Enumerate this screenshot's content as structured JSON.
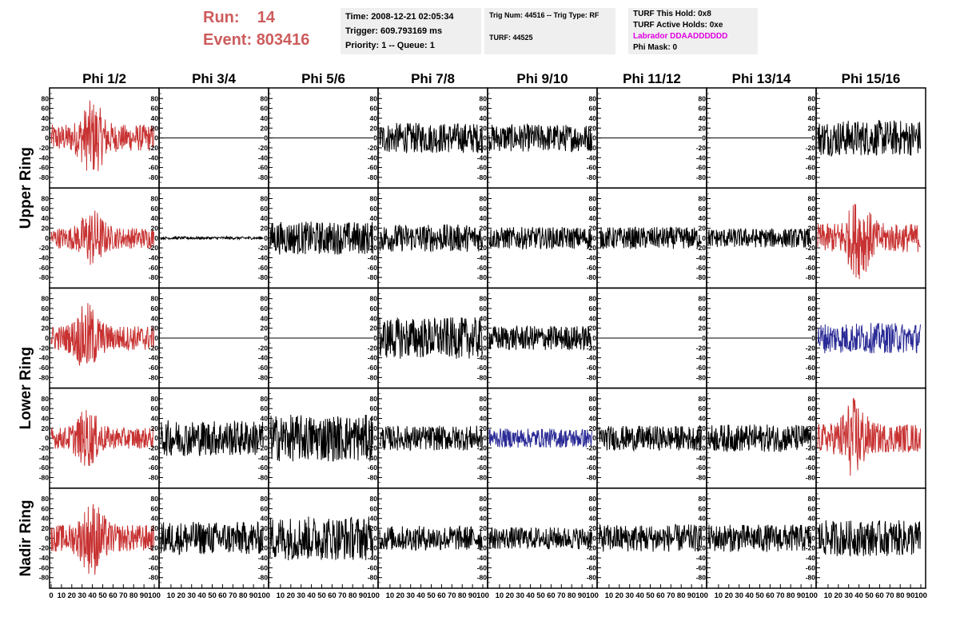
{
  "header": {
    "run_label": "Run:",
    "run_value": "14",
    "event_label": "Event:",
    "event_value": "803416",
    "time": "Time: 2008-12-21 02:05:34",
    "trigger": "Trigger: 609.793169 ms",
    "priority": "Priority: 1 -- Queue: 1",
    "trig_num": "Trig Num: 44516 -- Trig Type: RF",
    "turf": "TURF: 44525",
    "turf_this_hold": "TURF This Hold: 0x8",
    "turf_active_holds": "TURF Active Holds: 0xe",
    "labrador": "Labrador DDAADDDDDD",
    "phi_mask": "Phi Mask: 0"
  },
  "chart_data": {
    "type": "line",
    "title": "",
    "columns": [
      "Phi 1/2",
      "Phi 3/4",
      "Phi 5/6",
      "Phi 7/8",
      "Phi 9/10",
      "Phi 11/12",
      "Phi 13/14",
      "Phi 15/16"
    ],
    "ring_labels": [
      "Upper Ring",
      "Lower Ring",
      "Nadir Ring"
    ],
    "rows": 5,
    "xlim": [
      0,
      100
    ],
    "ylim": [
      -95,
      95
    ],
    "x_ticks": [
      0,
      10,
      20,
      30,
      40,
      50,
      60,
      70,
      80,
      90,
      100
    ],
    "y_ticks": [
      -80,
      -60,
      -40,
      -20,
      0,
      20,
      40,
      60,
      80
    ],
    "colors": {
      "black": "#000000",
      "red": "#c83232",
      "blue": "#2a2a96",
      "flat": "#000000"
    },
    "panels": [
      [
        {
          "color": "red",
          "amp": 28,
          "burst": 40
        },
        {
          "color": "flat",
          "amp": 0
        },
        {
          "color": "flat",
          "amp": 0
        },
        {
          "color": "black",
          "amp": 22
        },
        {
          "color": "black",
          "amp": 20
        },
        {
          "color": "flat",
          "amp": 0
        },
        {
          "color": "flat",
          "amp": 0
        },
        {
          "color": "black",
          "amp": 26
        }
      ],
      [
        {
          "color": "red",
          "amp": 22,
          "burst": 40
        },
        {
          "color": "black",
          "amp": 2
        },
        {
          "color": "black",
          "amp": 24
        },
        {
          "color": "black",
          "amp": 20
        },
        {
          "color": "black",
          "amp": 16
        },
        {
          "color": "black",
          "amp": 16
        },
        {
          "color": "black",
          "amp": 14
        },
        {
          "color": "red",
          "amp": 30,
          "burst": 40
        }
      ],
      [
        {
          "color": "red",
          "amp": 26,
          "burst": 35
        },
        {
          "color": "flat",
          "amp": 0
        },
        {
          "color": "flat",
          "amp": 0
        },
        {
          "color": "black",
          "amp": 30
        },
        {
          "color": "black",
          "amp": 18
        },
        {
          "color": "flat",
          "amp": 0
        },
        {
          "color": "flat",
          "amp": 0
        },
        {
          "color": "blue",
          "amp": 22
        }
      ],
      [
        {
          "color": "red",
          "amp": 22,
          "burst": 35
        },
        {
          "color": "black",
          "amp": 26
        },
        {
          "color": "black",
          "amp": 34
        },
        {
          "color": "black",
          "amp": 18
        },
        {
          "color": "blue",
          "amp": 14
        },
        {
          "color": "black",
          "amp": 18
        },
        {
          "color": "black",
          "amp": 20
        },
        {
          "color": "red",
          "amp": 30,
          "burst": 35
        }
      ],
      [
        {
          "color": "red",
          "amp": 28,
          "burst": 40
        },
        {
          "color": "black",
          "amp": 24
        },
        {
          "color": "black",
          "amp": 32
        },
        {
          "color": "black",
          "amp": 18
        },
        {
          "color": "black",
          "amp": 16
        },
        {
          "color": "black",
          "amp": 20
        },
        {
          "color": "black",
          "amp": 20
        },
        {
          "color": "black",
          "amp": 26
        }
      ]
    ]
  }
}
